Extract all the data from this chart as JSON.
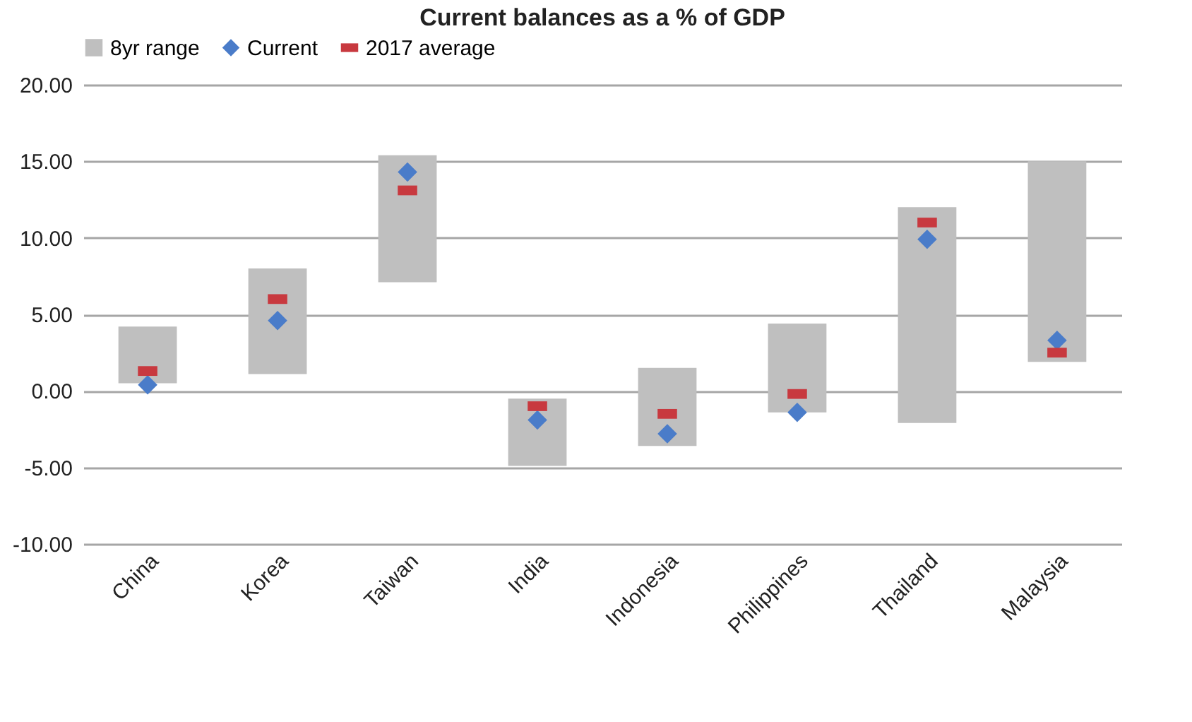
{
  "chart_data": {
    "type": "bar",
    "title": "Current balances as a % of GDP",
    "categories": [
      "China",
      "Korea",
      "Taiwan",
      "India",
      "Indonesia",
      "Philippines",
      "Thailand",
      "Malaysia"
    ],
    "series": [
      {
        "name": "8yr range",
        "type": "bar",
        "color": "#bfbfbf",
        "base": [
          0.5,
          1.1,
          7.1,
          -4.9,
          -3.6,
          -1.4,
          -2.1,
          1.9
        ],
        "values": [
          3.7,
          6.9,
          8.3,
          4.4,
          5.1,
          5.8,
          14.1,
          13.1
        ]
      },
      {
        "name": "Current",
        "type": "scatter",
        "marker": "diamond",
        "color": "#4a7cc9",
        "values": [
          0.4,
          4.6,
          14.3,
          -1.9,
          -2.8,
          -1.4,
          9.9,
          3.3
        ]
      },
      {
        "name": "2017 average",
        "type": "scatter",
        "marker": "square",
        "color": "#c8393f",
        "values": [
          1.3,
          6.0,
          13.1,
          -1.0,
          -1.5,
          -0.2,
          11.0,
          2.5
        ]
      }
    ],
    "ylim": [
      -10,
      20
    ],
    "yticks": [
      {
        "value": -10,
        "label": "-10.00"
      },
      {
        "value": -5,
        "label": "-5.00"
      },
      {
        "value": 0,
        "label": "0.00"
      },
      {
        "value": 5,
        "label": "5.00"
      },
      {
        "value": 10,
        "label": "10.00"
      },
      {
        "value": 15,
        "label": "15.00"
      },
      {
        "value": 20,
        "label": "20.00"
      }
    ],
    "grid": "y",
    "legend": "top"
  }
}
